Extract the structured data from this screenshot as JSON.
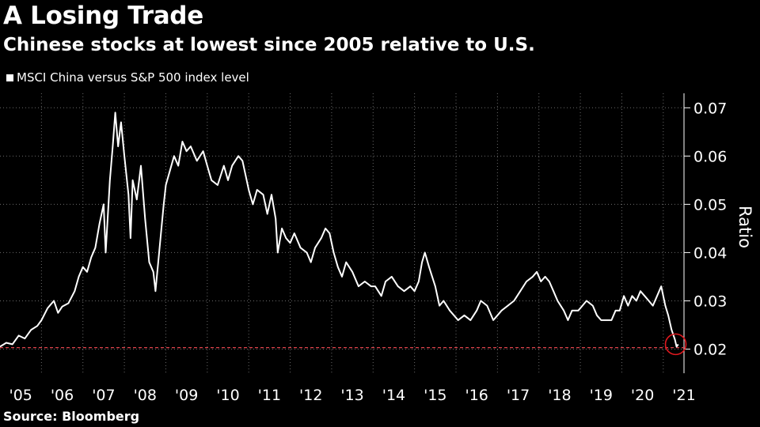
{
  "header": {
    "title": "A Losing Trade",
    "subtitle": "Chinese stocks at lowest since 2005 relative to U.S."
  },
  "legend": {
    "label": "MSCI China versus S&P 500 index level"
  },
  "footer": {
    "source": "Source: Bloomberg"
  },
  "colors": {
    "background": "#000000",
    "line": "#ffffff",
    "reference_line": "#e0434b",
    "highlight_circle": "#e0191f"
  },
  "chart_data": {
    "type": "line",
    "ylabel": "Ratio",
    "xlabel": "",
    "ylim": [
      0.015,
      0.073
    ],
    "xlim": [
      2005.0,
      2021.5
    ],
    "grid": "vertical dotted at year boundaries, horizontal dotted at y ticks",
    "y_ticks": [
      0.02,
      0.03,
      0.04,
      0.05,
      0.06,
      0.07
    ],
    "y_tick_labels": [
      "0.02",
      "0.03",
      "0.04",
      "0.05",
      "0.06",
      "0.07"
    ],
    "x_tick_labels": [
      "'05",
      "'06",
      "'07",
      "'08",
      "'09",
      "'10",
      "'11",
      "'12",
      "'13",
      "'14",
      "'15",
      "'16",
      "'17",
      "'18",
      "'19",
      "'20",
      "'21"
    ],
    "reference_line": {
      "y": 0.0203,
      "style": "dashed"
    },
    "highlight": {
      "x": 2021.3,
      "y": 0.021,
      "shape": "circle"
    },
    "series": [
      {
        "points": [
          [
            2005.0,
            0.0205
          ],
          [
            2005.15,
            0.0213
          ],
          [
            2005.3,
            0.021
          ],
          [
            2005.45,
            0.0228
          ],
          [
            2005.6,
            0.0222
          ],
          [
            2005.75,
            0.024
          ],
          [
            2005.9,
            0.0248
          ],
          [
            2006.0,
            0.026
          ],
          [
            2006.15,
            0.0285
          ],
          [
            2006.3,
            0.03
          ],
          [
            2006.4,
            0.0275
          ],
          [
            2006.5,
            0.0288
          ],
          [
            2006.65,
            0.0295
          ],
          [
            2006.8,
            0.032
          ],
          [
            2006.9,
            0.035
          ],
          [
            2007.0,
            0.037
          ],
          [
            2007.1,
            0.036
          ],
          [
            2007.2,
            0.039
          ],
          [
            2007.3,
            0.041
          ],
          [
            2007.4,
            0.046
          ],
          [
            2007.5,
            0.05
          ],
          [
            2007.55,
            0.04
          ],
          [
            2007.65,
            0.055
          ],
          [
            2007.72,
            0.062
          ],
          [
            2007.78,
            0.069
          ],
          [
            2007.85,
            0.062
          ],
          [
            2007.92,
            0.067
          ],
          [
            2008.0,
            0.06
          ],
          [
            2008.1,
            0.052
          ],
          [
            2008.15,
            0.043
          ],
          [
            2008.2,
            0.055
          ],
          [
            2008.3,
            0.051
          ],
          [
            2008.4,
            0.058
          ],
          [
            2008.5,
            0.047
          ],
          [
            2008.6,
            0.038
          ],
          [
            2008.7,
            0.036
          ],
          [
            2008.75,
            0.032
          ],
          [
            2008.85,
            0.041
          ],
          [
            2008.95,
            0.05
          ],
          [
            2009.0,
            0.054
          ],
          [
            2009.1,
            0.057
          ],
          [
            2009.2,
            0.06
          ],
          [
            2009.3,
            0.058
          ],
          [
            2009.4,
            0.063
          ],
          [
            2009.5,
            0.061
          ],
          [
            2009.6,
            0.062
          ],
          [
            2009.75,
            0.059
          ],
          [
            2009.9,
            0.061
          ],
          [
            2010.0,
            0.058
          ],
          [
            2010.1,
            0.055
          ],
          [
            2010.25,
            0.054
          ],
          [
            2010.4,
            0.058
          ],
          [
            2010.5,
            0.055
          ],
          [
            2010.6,
            0.058
          ],
          [
            2010.75,
            0.06
          ],
          [
            2010.85,
            0.059
          ],
          [
            2010.95,
            0.055
          ],
          [
            2011.0,
            0.053
          ],
          [
            2011.1,
            0.05
          ],
          [
            2011.2,
            0.053
          ],
          [
            2011.35,
            0.052
          ],
          [
            2011.45,
            0.048
          ],
          [
            2011.55,
            0.052
          ],
          [
            2011.65,
            0.047
          ],
          [
            2011.7,
            0.04
          ],
          [
            2011.8,
            0.045
          ],
          [
            2011.9,
            0.043
          ],
          [
            2012.0,
            0.042
          ],
          [
            2012.1,
            0.044
          ],
          [
            2012.25,
            0.041
          ],
          [
            2012.4,
            0.04
          ],
          [
            2012.5,
            0.038
          ],
          [
            2012.6,
            0.041
          ],
          [
            2012.75,
            0.043
          ],
          [
            2012.85,
            0.045
          ],
          [
            2012.95,
            0.044
          ],
          [
            2013.05,
            0.04
          ],
          [
            2013.15,
            0.037
          ],
          [
            2013.25,
            0.035
          ],
          [
            2013.35,
            0.038
          ],
          [
            2013.5,
            0.036
          ],
          [
            2013.65,
            0.033
          ],
          [
            2013.8,
            0.034
          ],
          [
            2013.95,
            0.033
          ],
          [
            2014.05,
            0.033
          ],
          [
            2014.2,
            0.031
          ],
          [
            2014.3,
            0.034
          ],
          [
            2014.45,
            0.035
          ],
          [
            2014.6,
            0.033
          ],
          [
            2014.75,
            0.032
          ],
          [
            2014.9,
            0.033
          ],
          [
            2015.0,
            0.032
          ],
          [
            2015.1,
            0.034
          ],
          [
            2015.18,
            0.038
          ],
          [
            2015.25,
            0.04
          ],
          [
            2015.35,
            0.037
          ],
          [
            2015.5,
            0.033
          ],
          [
            2015.6,
            0.029
          ],
          [
            2015.7,
            0.03
          ],
          [
            2015.85,
            0.028
          ],
          [
            2015.95,
            0.027
          ],
          [
            2016.05,
            0.026
          ],
          [
            2016.2,
            0.027
          ],
          [
            2016.35,
            0.026
          ],
          [
            2016.5,
            0.028
          ],
          [
            2016.6,
            0.03
          ],
          [
            2016.75,
            0.029
          ],
          [
            2016.9,
            0.026
          ],
          [
            2017.0,
            0.027
          ],
          [
            2017.1,
            0.028
          ],
          [
            2017.25,
            0.029
          ],
          [
            2017.4,
            0.03
          ],
          [
            2017.55,
            0.032
          ],
          [
            2017.7,
            0.034
          ],
          [
            2017.85,
            0.035
          ],
          [
            2017.95,
            0.036
          ],
          [
            2018.05,
            0.034
          ],
          [
            2018.15,
            0.035
          ],
          [
            2018.25,
            0.034
          ],
          [
            2018.35,
            0.032
          ],
          [
            2018.45,
            0.03
          ],
          [
            2018.6,
            0.028
          ],
          [
            2018.7,
            0.026
          ],
          [
            2018.8,
            0.028
          ],
          [
            2018.95,
            0.028
          ],
          [
            2019.05,
            0.029
          ],
          [
            2019.15,
            0.03
          ],
          [
            2019.3,
            0.029
          ],
          [
            2019.4,
            0.027
          ],
          [
            2019.5,
            0.026
          ],
          [
            2019.6,
            0.026
          ],
          [
            2019.75,
            0.026
          ],
          [
            2019.85,
            0.028
          ],
          [
            2019.95,
            0.028
          ],
          [
            2020.05,
            0.031
          ],
          [
            2020.15,
            0.029
          ],
          [
            2020.25,
            0.031
          ],
          [
            2020.35,
            0.03
          ],
          [
            2020.45,
            0.032
          ],
          [
            2020.55,
            0.031
          ],
          [
            2020.65,
            0.03
          ],
          [
            2020.75,
            0.029
          ],
          [
            2020.85,
            0.031
          ],
          [
            2020.95,
            0.033
          ],
          [
            2021.0,
            0.031
          ],
          [
            2021.05,
            0.029
          ],
          [
            2021.12,
            0.027
          ],
          [
            2021.2,
            0.024
          ],
          [
            2021.28,
            0.022
          ],
          [
            2021.32,
            0.0205
          ],
          [
            2021.36,
            0.021
          ]
        ]
      }
    ]
  }
}
